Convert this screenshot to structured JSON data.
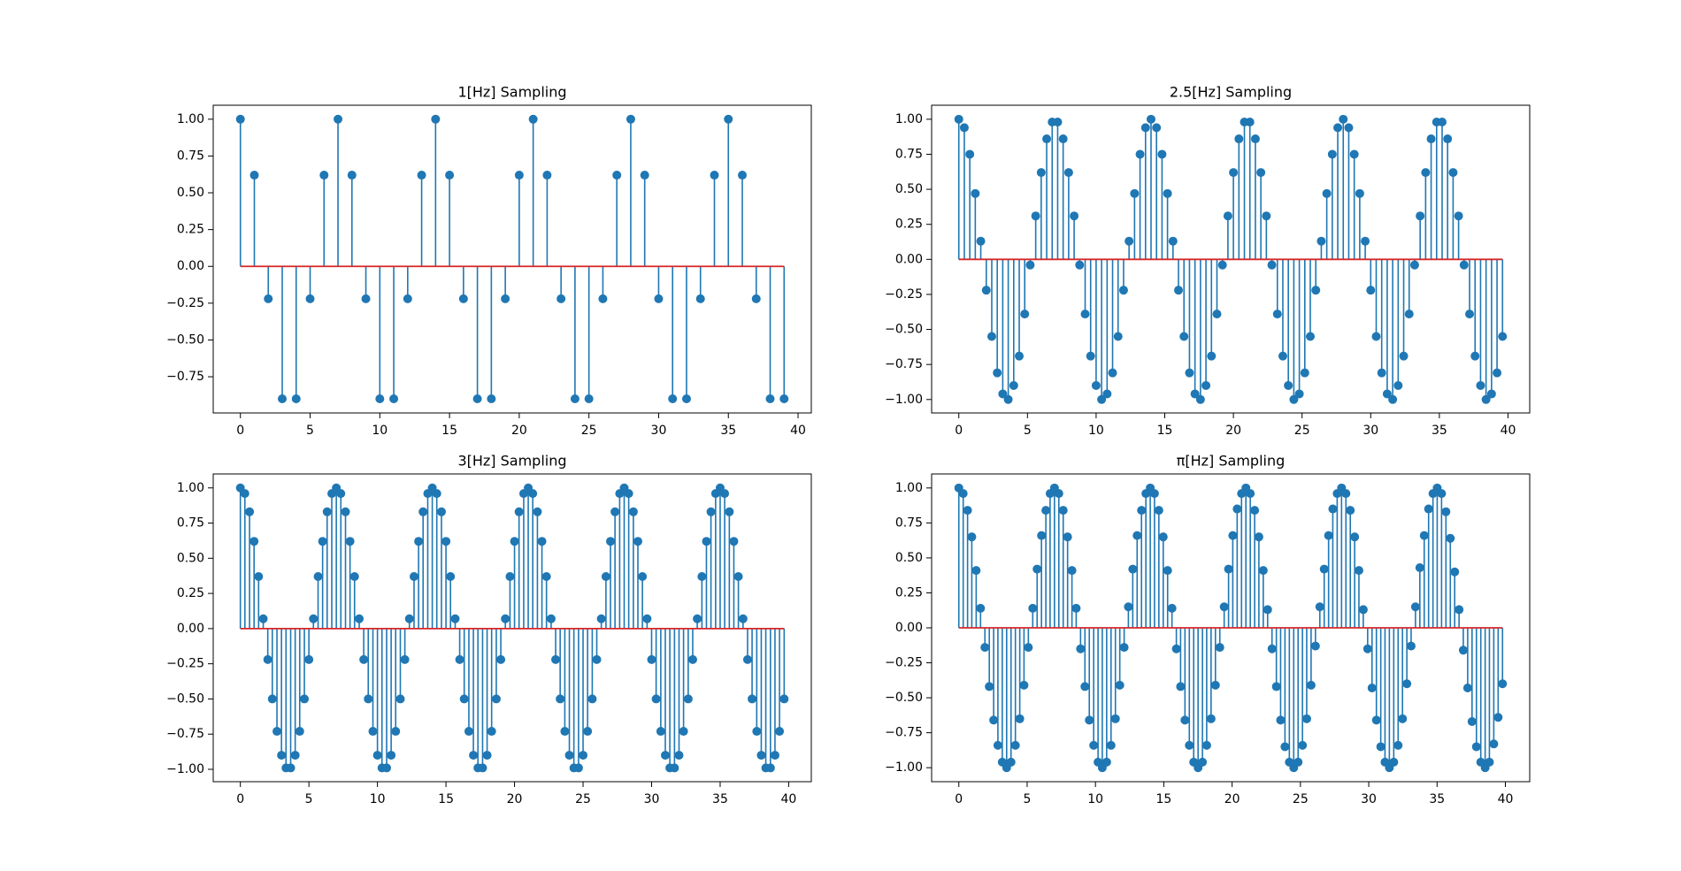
{
  "chart_data": [
    {
      "type": "stem",
      "title": "1[Hz] Sampling",
      "color": "#1f77b4",
      "baseline_color": "#d62728",
      "x": [
        0,
        1,
        2,
        3,
        4,
        5,
        6,
        7,
        8,
        9,
        10,
        11,
        12,
        13,
        14,
        15,
        16,
        17,
        18,
        19,
        20,
        21,
        22,
        23,
        24,
        25,
        26,
        27,
        28,
        29,
        30,
        31,
        32,
        33,
        34,
        35,
        36,
        37,
        38,
        39
      ],
      "values": [
        1,
        0.62,
        -0.22,
        -0.9,
        -0.9,
        -0.22,
        0.62,
        1,
        0.62,
        -0.22,
        -0.9,
        -0.9,
        -0.22,
        0.62,
        1,
        0.62,
        -0.22,
        -0.9,
        -0.9,
        -0.22,
        0.62,
        1,
        0.62,
        -0.22,
        -0.9,
        -0.9,
        -0.22,
        0.62,
        1,
        0.62,
        -0.22,
        -0.9,
        -0.9,
        -0.22,
        0.62,
        1,
        0.62,
        -0.22,
        -0.9,
        -0.9
      ],
      "xlim": [
        -1.95,
        40.95
      ],
      "ylim": [
        -0.996,
        1.095
      ],
      "xticks": [
        0,
        5,
        10,
        15,
        20,
        25,
        30,
        35,
        40
      ],
      "yticks": [
        {
          "value": -0.75,
          "label": "−0.75"
        },
        {
          "value": -0.5,
          "label": "−0.50"
        },
        {
          "value": -0.25,
          "label": "−0.25"
        },
        {
          "value": 0,
          "label": "0.00"
        },
        {
          "value": 0.25,
          "label": "0.25"
        },
        {
          "value": 0.5,
          "label": "0.50"
        },
        {
          "value": 0.75,
          "label": "0.75"
        },
        {
          "value": 1,
          "label": "1.00"
        }
      ]
    },
    {
      "type": "stem",
      "title": "2.5[Hz] Sampling",
      "color": "#1f77b4",
      "baseline_color": "#d62728",
      "x": [
        0,
        0.4,
        0.8,
        1.2,
        1.6,
        2,
        2.4,
        2.8,
        3.2,
        3.6,
        4,
        4.4,
        4.8,
        5.2,
        5.6,
        6,
        6.4,
        6.8,
        7.2,
        7.6,
        8,
        8.4,
        8.8,
        9.2,
        9.6,
        10,
        10.4,
        10.8,
        11.2,
        11.6,
        12,
        12.4,
        12.8,
        13.2,
        13.6,
        14,
        14.4,
        14.8,
        15.2,
        15.6,
        16,
        16.4,
        16.8,
        17.2,
        17.6,
        18,
        18.4,
        18.8,
        19.2,
        19.6,
        20,
        20.4,
        20.8,
        21.2,
        21.6,
        22,
        22.4,
        22.8,
        23.2,
        23.6,
        24,
        24.4,
        24.8,
        25.2,
        25.6,
        26,
        26.4,
        26.8,
        27.2,
        27.6,
        28,
        28.4,
        28.8,
        29.2,
        29.6,
        30,
        30.4,
        30.8,
        31.2,
        31.6,
        32,
        32.4,
        32.8,
        33.2,
        33.6,
        34,
        34.4,
        34.8,
        35.2,
        35.6,
        36,
        36.4,
        36.8,
        37.2,
        37.6,
        38,
        38.4,
        38.8,
        39.2,
        39.6
      ],
      "values": [
        1,
        0.94,
        0.75,
        0.47,
        0.13,
        -0.22,
        -0.55,
        -0.81,
        -0.96,
        -1,
        -0.9,
        -0.69,
        -0.39,
        -0.04,
        0.31,
        0.62,
        0.86,
        0.98,
        0.98,
        0.86,
        0.62,
        0.31,
        -0.04,
        -0.39,
        -0.69,
        -0.9,
        -1,
        -0.96,
        -0.81,
        -0.55,
        -0.22,
        0.13,
        0.47,
        0.75,
        0.94,
        1,
        0.94,
        0.75,
        0.47,
        0.13,
        -0.22,
        -0.55,
        -0.81,
        -0.96,
        -1,
        -0.9,
        -0.69,
        -0.39,
        -0.04,
        0.31,
        0.62,
        0.86,
        0.98,
        0.98,
        0.86,
        0.62,
        0.31,
        -0.04,
        -0.39,
        -0.69,
        -0.9,
        -1,
        -0.96,
        -0.81,
        -0.55,
        -0.22,
        0.13,
        0.47,
        0.75,
        0.94,
        1,
        0.94,
        0.75,
        0.47,
        0.13,
        -0.22,
        -0.55,
        -0.81,
        -0.96,
        -1,
        -0.9,
        -0.69,
        -0.39,
        -0.04,
        0.31,
        0.62,
        0.86,
        0.98,
        0.98,
        0.86,
        0.62,
        0.31,
        -0.04,
        -0.39,
        -0.69,
        -0.9,
        -1,
        -0.96,
        -0.81,
        -0.55
      ],
      "xlim": [
        -1.98,
        41.58
      ],
      "ylim": [
        -1.096,
        1.1
      ],
      "xticks": [
        0,
        5,
        10,
        15,
        20,
        25,
        30,
        35,
        40
      ],
      "yticks": [
        {
          "value": -1,
          "label": "−1.00"
        },
        {
          "value": -0.75,
          "label": "−0.75"
        },
        {
          "value": -0.5,
          "label": "−0.50"
        },
        {
          "value": -0.25,
          "label": "−0.25"
        },
        {
          "value": 0,
          "label": "0.00"
        },
        {
          "value": 0.25,
          "label": "0.25"
        },
        {
          "value": 0.5,
          "label": "0.50"
        },
        {
          "value": 0.75,
          "label": "0.75"
        },
        {
          "value": 1,
          "label": "1.00"
        }
      ]
    },
    {
      "type": "stem",
      "title": "3[Hz] Sampling",
      "color": "#1f77b4",
      "baseline_color": "#d62728",
      "x": [
        0,
        0.33,
        0.67,
        1,
        1.33,
        1.67,
        2,
        2.33,
        2.67,
        3,
        3.33,
        3.67,
        4,
        4.33,
        4.67,
        5,
        5.33,
        5.67,
        6,
        6.33,
        6.67,
        7,
        7.33,
        7.67,
        8,
        8.33,
        8.67,
        9,
        9.33,
        9.67,
        10,
        10.33,
        10.67,
        11,
        11.33,
        11.67,
        12,
        12.33,
        12.67,
        13,
        13.33,
        13.67,
        14,
        14.33,
        14.67,
        15,
        15.33,
        15.67,
        16,
        16.33,
        16.67,
        17,
        17.33,
        17.67,
        18,
        18.33,
        18.67,
        19,
        19.33,
        19.67,
        20,
        20.33,
        20.67,
        21,
        21.33,
        21.67,
        22,
        22.33,
        22.67,
        23,
        23.33,
        23.67,
        24,
        24.33,
        24.67,
        25,
        25.33,
        25.67,
        26,
        26.33,
        26.67,
        27,
        27.33,
        27.67,
        28,
        28.33,
        28.67,
        29,
        29.33,
        29.67,
        30,
        30.33,
        30.67,
        31,
        31.33,
        31.67,
        32,
        32.33,
        32.67,
        33,
        33.33,
        33.67,
        34,
        34.33,
        34.67,
        35,
        35.33,
        35.67,
        36,
        36.33,
        36.67,
        37,
        37.33,
        37.67,
        38,
        38.33,
        38.67,
        39,
        39.33,
        39.67
      ],
      "values": [
        1,
        0.96,
        0.83,
        0.62,
        0.37,
        0.07,
        -0.22,
        -0.5,
        -0.73,
        -0.9,
        -0.99,
        -0.99,
        -0.9,
        -0.73,
        -0.5,
        -0.22,
        0.07,
        0.37,
        0.62,
        0.83,
        0.96,
        1,
        0.96,
        0.83,
        0.62,
        0.37,
        0.07,
        -0.22,
        -0.5,
        -0.73,
        -0.9,
        -0.99,
        -0.99,
        -0.9,
        -0.73,
        -0.5,
        -0.22,
        0.07,
        0.37,
        0.62,
        0.83,
        0.96,
        1,
        0.96,
        0.83,
        0.62,
        0.37,
        0.07,
        -0.22,
        -0.5,
        -0.73,
        -0.9,
        -0.99,
        -0.99,
        -0.9,
        -0.73,
        -0.5,
        -0.22,
        0.07,
        0.37,
        0.62,
        0.83,
        0.96,
        1,
        0.96,
        0.83,
        0.62,
        0.37,
        0.07,
        -0.22,
        -0.5,
        -0.73,
        -0.9,
        -0.99,
        -0.99,
        -0.9,
        -0.73,
        -0.5,
        -0.22,
        0.07,
        0.37,
        0.62,
        0.83,
        0.96,
        1,
        0.96,
        0.83,
        0.62,
        0.37,
        0.07,
        -0.22,
        -0.5,
        -0.73,
        -0.9,
        -0.99,
        -0.99,
        -0.9,
        -0.73,
        -0.5,
        -0.22,
        0.07,
        0.37,
        0.62,
        0.83,
        0.96,
        1,
        0.96,
        0.83,
        0.62,
        0.37,
        0.07,
        -0.22,
        -0.5,
        -0.73,
        -0.9,
        -0.99,
        -0.99,
        -0.9,
        -0.73,
        -0.5
      ],
      "xlim": [
        -1.98,
        41.65
      ],
      "ylim": [
        -1.088,
        1.099
      ],
      "xticks": [
        0,
        5,
        10,
        15,
        20,
        25,
        30,
        35,
        40
      ],
      "yticks": [
        {
          "value": -1,
          "label": "−1.00"
        },
        {
          "value": -0.75,
          "label": "−0.75"
        },
        {
          "value": -0.5,
          "label": "−0.50"
        },
        {
          "value": -0.25,
          "label": "−0.25"
        },
        {
          "value": 0,
          "label": "0.00"
        },
        {
          "value": 0.25,
          "label": "0.25"
        },
        {
          "value": 0.5,
          "label": "0.50"
        },
        {
          "value": 0.75,
          "label": "0.75"
        },
        {
          "value": 1,
          "label": "1.00"
        }
      ]
    },
    {
      "type": "stem",
      "title": "π[Hz] Sampling",
      "color": "#1f77b4",
      "baseline_color": "#d62728",
      "x": [
        0,
        0.32,
        0.64,
        0.95,
        1.27,
        1.59,
        1.91,
        2.23,
        2.55,
        2.86,
        3.18,
        3.5,
        3.82,
        4.14,
        4.46,
        4.77,
        5.09,
        5.41,
        5.73,
        6.05,
        6.37,
        6.68,
        7,
        7.32,
        7.64,
        7.96,
        8.28,
        8.59,
        8.91,
        9.23,
        9.55,
        9.87,
        10.19,
        10.5,
        10.82,
        11.14,
        11.46,
        11.78,
        12.1,
        12.41,
        12.73,
        13.05,
        13.37,
        13.69,
        14.01,
        14.32,
        14.64,
        14.96,
        15.28,
        15.6,
        15.92,
        16.23,
        16.55,
        16.87,
        17.19,
        17.51,
        17.83,
        18.14,
        18.46,
        18.78,
        19.1,
        19.42,
        19.74,
        20.05,
        20.37,
        20.69,
        21.01,
        21.33,
        21.65,
        21.96,
        22.28,
        22.6,
        22.92,
        23.24,
        23.55,
        23.87,
        24.19,
        24.51,
        24.83,
        25.15,
        25.46,
        25.78,
        26.1,
        26.42,
        26.74,
        27.06,
        27.37,
        27.69,
        28.01,
        28.33,
        28.65,
        28.97,
        29.28,
        29.6,
        29.92,
        30.24,
        30.56,
        30.88,
        31.19,
        31.51,
        31.83,
        32.15,
        32.47,
        32.79,
        33.1,
        33.42,
        33.74,
        34.06,
        34.38,
        34.7,
        35.01,
        35.33,
        35.65,
        35.97,
        36.29,
        36.61,
        36.92,
        37.24,
        37.56,
        37.88,
        38.2,
        38.52,
        38.83,
        39.15,
        39.47,
        39.79
      ],
      "values": [
        1,
        0.96,
        0.84,
        0.65,
        0.41,
        0.14,
        -0.14,
        -0.42,
        -0.66,
        -0.84,
        -0.96,
        -1,
        -0.96,
        -0.84,
        -0.65,
        -0.41,
        -0.14,
        0.14,
        0.42,
        0.66,
        0.84,
        0.96,
        1,
        0.96,
        0.84,
        0.65,
        0.41,
        0.14,
        -0.15,
        -0.42,
        -0.66,
        -0.84,
        -0.96,
        -1,
        -0.96,
        -0.84,
        -0.65,
        -0.41,
        -0.14,
        0.15,
        0.42,
        0.66,
        0.84,
        0.96,
        1,
        0.96,
        0.84,
        0.65,
        0.41,
        0.14,
        -0.15,
        -0.42,
        -0.66,
        -0.84,
        -0.96,
        -1,
        -0.96,
        -0.84,
        -0.65,
        -0.41,
        -0.14,
        0.15,
        0.42,
        0.66,
        0.85,
        0.96,
        1,
        0.96,
        0.84,
        0.65,
        0.41,
        0.13,
        -0.15,
        -0.42,
        -0.66,
        -0.85,
        -0.96,
        -1,
        -0.96,
        -0.84,
        -0.65,
        -0.41,
        -0.13,
        0.15,
        0.42,
        0.66,
        0.85,
        0.96,
        1,
        0.96,
        0.84,
        0.65,
        0.41,
        0.13,
        -0.15,
        -0.43,
        -0.66,
        -0.85,
        -0.96,
        -1,
        -0.96,
        -0.84,
        -0.65,
        -0.4,
        -0.13,
        0.15,
        0.43,
        0.66,
        0.85,
        0.96,
        1,
        0.96,
        0.83,
        0.64,
        0.4,
        0.13,
        -0.16,
        -0.43,
        -0.67,
        -0.85,
        -0.96,
        -1,
        -0.96,
        -0.83,
        -0.64,
        -0.4
      ],
      "xlim": [
        -1.99,
        41.78
      ],
      "ylim": [
        -1.1,
        1.1
      ],
      "xticks": [
        0,
        5,
        10,
        15,
        20,
        25,
        30,
        35,
        40
      ],
      "yticks": [
        {
          "value": -1,
          "label": "−1.00"
        },
        {
          "value": -0.75,
          "label": "−0.75"
        },
        {
          "value": -0.5,
          "label": "−0.50"
        },
        {
          "value": -0.25,
          "label": "−0.25"
        },
        {
          "value": 0,
          "label": "0.00"
        },
        {
          "value": 0.25,
          "label": "0.25"
        },
        {
          "value": 0.5,
          "label": "0.50"
        },
        {
          "value": 0.75,
          "label": "0.75"
        },
        {
          "value": 1,
          "label": "1.00"
        }
      ]
    }
  ]
}
